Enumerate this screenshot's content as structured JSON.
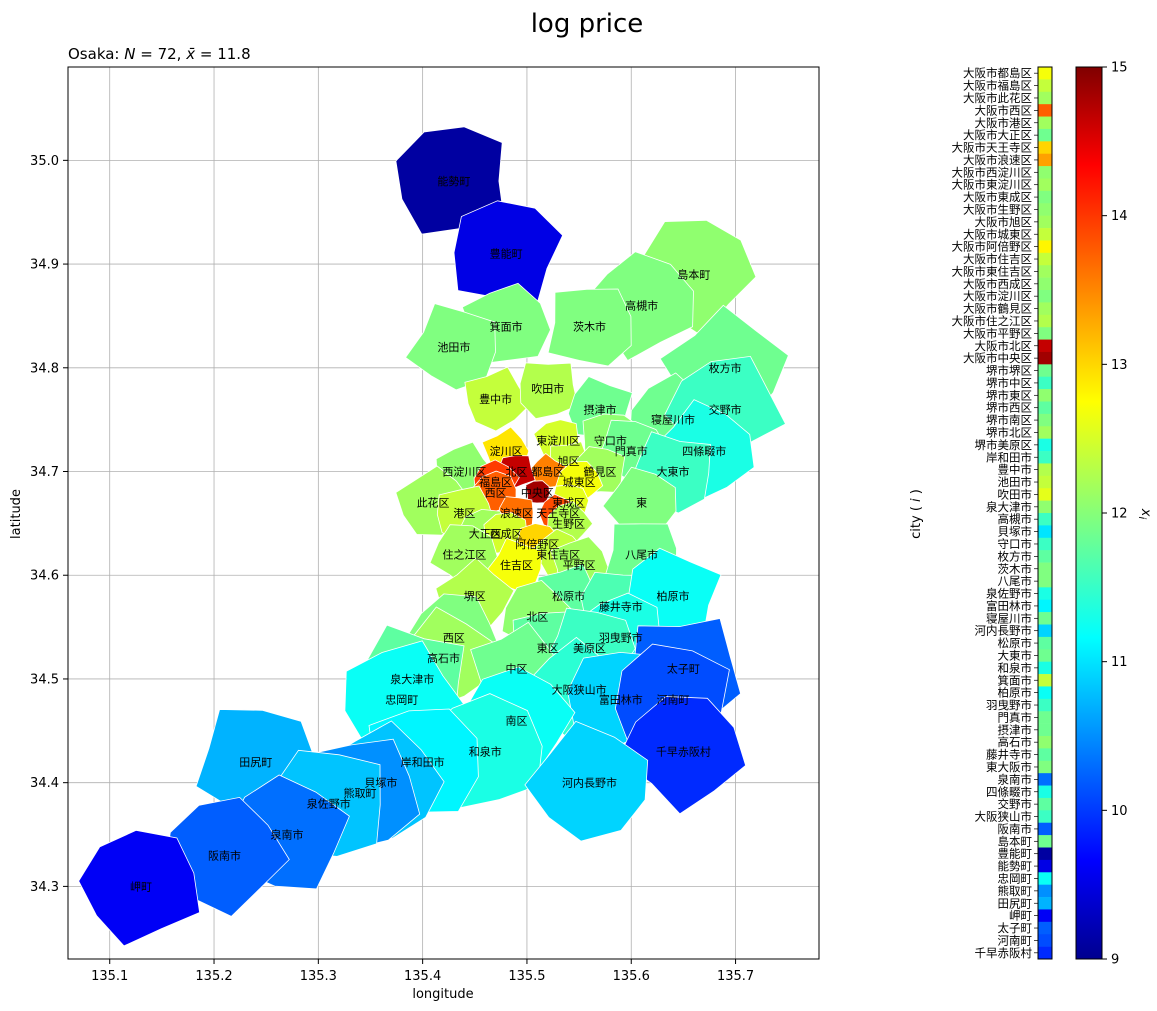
{
  "figure": {
    "title": "log price",
    "subtitle": "Osaka: $N = 72, \\bar{x} = 11.8$"
  },
  "chart_data": [
    {
      "type": "map",
      "title": "Osaka: $N = 72, \\bar{x} = 11.8$",
      "xlabel": "longitude",
      "ylabel": "latitude",
      "xlim": [
        135.06,
        135.78
      ],
      "ylim": [
        34.23,
        35.09
      ],
      "xticks": [
        "135.1",
        "135.2",
        "135.3",
        "135.4",
        "135.5",
        "135.6",
        "135.7"
      ],
      "yticks": [
        "34.3",
        "34.4",
        "34.5",
        "34.6",
        "34.7",
        "34.8",
        "34.9",
        "35.0"
      ],
      "grid": true,
      "colormap": "jet",
      "clim": [
        9,
        15
      ],
      "regions": [
        {
          "name": "能勢町",
          "lon": 135.43,
          "lat": 34.98,
          "value": 9.2
        },
        {
          "name": "豊能町",
          "lon": 135.48,
          "lat": 34.91,
          "value": 9.6
        },
        {
          "name": "島本町",
          "lon": 135.66,
          "lat": 34.89,
          "value": 12.1
        },
        {
          "name": "高槻市",
          "lon": 135.61,
          "lat": 34.86,
          "value": 12.0
        },
        {
          "name": "箕面市",
          "lon": 135.48,
          "lat": 34.84,
          "value": 12.0
        },
        {
          "name": "茨木市",
          "lon": 135.56,
          "lat": 34.84,
          "value": 12.0
        },
        {
          "name": "池田市",
          "lon": 135.43,
          "lat": 34.82,
          "value": 12.0
        },
        {
          "name": "枚方市",
          "lon": 135.69,
          "lat": 34.8,
          "value": 11.9
        },
        {
          "name": "豊中市",
          "lon": 135.47,
          "lat": 34.77,
          "value": 12.4
        },
        {
          "name": "吹田市",
          "lon": 135.52,
          "lat": 34.78,
          "value": 12.3
        },
        {
          "name": "摂津市",
          "lon": 135.57,
          "lat": 34.76,
          "value": 11.9
        },
        {
          "name": "寝屋川市",
          "lon": 135.64,
          "lat": 34.75,
          "value": 11.9
        },
        {
          "name": "交野市",
          "lon": 135.69,
          "lat": 34.76,
          "value": 11.6
        },
        {
          "name": "東淀川区",
          "lon": 135.53,
          "lat": 34.73,
          "value": 12.5
        },
        {
          "name": "守口市",
          "lon": 135.58,
          "lat": 34.73,
          "value": 12.1
        },
        {
          "name": "門真市",
          "lon": 135.6,
          "lat": 34.72,
          "value": 11.9
        },
        {
          "name": "四條畷市",
          "lon": 135.67,
          "lat": 34.72,
          "value": 11.4
        },
        {
          "name": "淀川区",
          "lon": 135.48,
          "lat": 34.72,
          "value": 12.9
        },
        {
          "name": "旭区",
          "lon": 135.54,
          "lat": 34.71,
          "value": 12.4
        },
        {
          "name": "大東市",
          "lon": 135.64,
          "lat": 34.7,
          "value": 11.6
        },
        {
          "name": "都島区",
          "lon": 135.52,
          "lat": 34.7,
          "value": 13.5
        },
        {
          "name": "西淀川区",
          "lon": 135.44,
          "lat": 34.7,
          "value": 12.1
        },
        {
          "name": "北区",
          "lon": 135.49,
          "lat": 34.7,
          "value": 14.6
        },
        {
          "name": "鶴見区",
          "lon": 135.57,
          "lat": 34.7,
          "value": 12.2
        },
        {
          "name": "福島区",
          "lon": 135.47,
          "lat": 34.69,
          "value": 13.9
        },
        {
          "name": "城東区",
          "lon": 135.55,
          "lat": 34.69,
          "value": 12.7
        },
        {
          "name": "西区",
          "lon": 135.47,
          "lat": 34.68,
          "value": 13.7
        },
        {
          "name": "中央区",
          "lon": 135.51,
          "lat": 34.68,
          "value": 14.8
        },
        {
          "name": "東成区",
          "lon": 135.54,
          "lat": 34.67,
          "value": 12.6
        },
        {
          "name": "東",
          "lon": 135.61,
          "lat": 34.67,
          "value": 12.0
        },
        {
          "name": "此花区",
          "lon": 135.41,
          "lat": 34.67,
          "value": 12.2
        },
        {
          "name": "港区",
          "lon": 135.44,
          "lat": 34.66,
          "value": 12.4
        },
        {
          "name": "浪速区",
          "lon": 135.49,
          "lat": 34.66,
          "value": 13.6
        },
        {
          "name": "天王寺区",
          "lon": 135.53,
          "lat": 34.66,
          "value": 13.8
        },
        {
          "name": "生野区",
          "lon": 135.54,
          "lat": 34.65,
          "value": 12.3
        },
        {
          "name": "大正区",
          "lon": 135.46,
          "lat": 34.64,
          "value": 12.2
        },
        {
          "name": "西成区",
          "lon": 135.48,
          "lat": 34.64,
          "value": 12.5
        },
        {
          "name": "阿倍野区",
          "lon": 135.51,
          "lat": 34.63,
          "value": 13.0
        },
        {
          "name": "住之江区",
          "lon": 135.44,
          "lat": 34.62,
          "value": 12.2
        },
        {
          "name": "東住吉区",
          "lon": 135.53,
          "lat": 34.62,
          "value": 12.4
        },
        {
          "name": "平野区",
          "lon": 135.55,
          "lat": 34.61,
          "value": 12.2
        },
        {
          "name": "八尾市",
          "lon": 135.61,
          "lat": 34.62,
          "value": 11.9
        },
        {
          "name": "住吉区",
          "lon": 135.49,
          "lat": 34.61,
          "value": 12.7
        },
        {
          "name": "堺区",
          "lon": 135.45,
          "lat": 34.58,
          "value": 12.3
        },
        {
          "name": "松原市",
          "lon": 135.54,
          "lat": 34.58,
          "value": 11.8
        },
        {
          "name": "藤井寺市",
          "lon": 135.59,
          "lat": 34.57,
          "value": 11.7
        },
        {
          "name": "柏原市",
          "lon": 135.64,
          "lat": 34.58,
          "value": 11.3
        },
        {
          "name": "北区",
          "lon": 135.51,
          "lat": 34.56,
          "value": 12.1
        },
        {
          "name": "西区",
          "lon": 135.43,
          "lat": 34.54,
          "value": 12.0
        },
        {
          "name": "羽曳野市",
          "lon": 135.59,
          "lat": 34.54,
          "value": 11.4
        },
        {
          "name": "東区",
          "lon": 135.52,
          "lat": 34.53,
          "value": 11.8
        },
        {
          "name": "美原区",
          "lon": 135.56,
          "lat": 34.53,
          "value": 11.6
        },
        {
          "name": "高石市",
          "lon": 135.42,
          "lat": 34.52,
          "value": 12.2
        },
        {
          "name": "中区",
          "lon": 135.49,
          "lat": 34.51,
          "value": 11.9
        },
        {
          "name": "太子町",
          "lon": 135.65,
          "lat": 34.51,
          "value": 10.3
        },
        {
          "name": "泉大津市",
          "lon": 135.39,
          "lat": 34.5,
          "value": 11.8
        },
        {
          "name": "大阪狭山市",
          "lon": 135.55,
          "lat": 34.49,
          "value": 11.5
        },
        {
          "name": "忠岡町",
          "lon": 135.38,
          "lat": 34.48,
          "value": 11.3
        },
        {
          "name": "富田林市",
          "lon": 135.59,
          "lat": 34.48,
          "value": 11.0
        },
        {
          "name": "河南町",
          "lon": 135.64,
          "lat": 34.48,
          "value": 10.2
        },
        {
          "name": "南区",
          "lon": 135.49,
          "lat": 34.46,
          "value": 11.3
        },
        {
          "name": "千早赤阪村",
          "lon": 135.65,
          "lat": 34.43,
          "value": 10.0
        },
        {
          "name": "和泉市",
          "lon": 135.46,
          "lat": 34.43,
          "value": 11.4
        },
        {
          "name": "岸和田市",
          "lon": 135.4,
          "lat": 34.42,
          "value": 11.2
        },
        {
          "name": "田尻町",
          "lon": 135.24,
          "lat": 34.42,
          "value": 10.8
        },
        {
          "name": "河内長野市",
          "lon": 135.56,
          "lat": 34.4,
          "value": 11.0
        },
        {
          "name": "貝塚市",
          "lon": 135.36,
          "lat": 34.4,
          "value": 10.9
        },
        {
          "name": "熊取町",
          "lon": 135.34,
          "lat": 34.39,
          "value": 10.6
        },
        {
          "name": "泉佐野市",
          "lon": 135.31,
          "lat": 34.38,
          "value": 10.9
        },
        {
          "name": "泉南市",
          "lon": 135.27,
          "lat": 34.35,
          "value": 10.4
        },
        {
          "name": "阪南市",
          "lon": 135.21,
          "lat": 34.33,
          "value": 10.3
        },
        {
          "name": "岬町",
          "lon": 135.13,
          "lat": 34.3,
          "value": 9.7
        }
      ]
    },
    {
      "type": "heatmap",
      "ylabel": "city ( $i$ )",
      "categories": [
        "大阪市都島区",
        "大阪市福島区",
        "大阪市此花区",
        "大阪市西区",
        "大阪市港区",
        "大阪市大正区",
        "大阪市天王寺区",
        "大阪市浪速区",
        "大阪市西淀川区",
        "大阪市東淀川区",
        "大阪市東成区",
        "大阪市生野区",
        "大阪市旭区",
        "大阪市城東区",
        "大阪市阿倍野区",
        "大阪市住吉区",
        "大阪市東住吉区",
        "大阪市西成区",
        "大阪市淀川区",
        "大阪市鶴見区",
        "大阪市住之江区",
        "大阪市平野区",
        "大阪市北区",
        "大阪市中央区",
        "堺市堺区",
        "堺市中区",
        "堺市東区",
        "堺市西区",
        "堺市南区",
        "堺市北区",
        "堺市美原区",
        "岸和田市",
        "豊中市",
        "池田市",
        "吹田市",
        "泉大津市",
        "高槻市",
        "貝塚市",
        "守口市",
        "枚方市",
        "茨木市",
        "八尾市",
        "泉佐野市",
        "富田林市",
        "寝屋川市",
        "河内長野市",
        "松原市",
        "大東市",
        "和泉市",
        "箕面市",
        "柏原市",
        "羽曳野市",
        "門真市",
        "摂津市",
        "高石市",
        "藤井寺市",
        "東大阪市",
        "泉南市",
        "四條畷市",
        "交野市",
        "大阪狭山市",
        "阪南市",
        "島本町",
        "豊能町",
        "能勢町",
        "忠岡町",
        "熊取町",
        "田尻町",
        "岬町",
        "太子町",
        "河南町",
        "千早赤阪村"
      ],
      "values": [
        12.7,
        12.4,
        12.2,
        13.7,
        12.2,
        11.9,
        13.0,
        13.3,
        12.1,
        12.2,
        12.0,
        12.1,
        12.2,
        12.4,
        12.8,
        12.4,
        12.2,
        12.1,
        12.0,
        12.2,
        12.3,
        12.0,
        14.6,
        14.8,
        11.9,
        11.6,
        12.1,
        11.8,
        12.0,
        12.2,
        11.4,
        11.6,
        12.3,
        12.4,
        12.6,
        12.1,
        11.6,
        11.1,
        11.6,
        11.8,
        12.0,
        12.0,
        11.4,
        11.2,
        11.9,
        11.0,
        11.8,
        11.9,
        11.4,
        12.4,
        11.3,
        11.6,
        11.9,
        11.9,
        12.1,
        11.8,
        12.0,
        10.4,
        11.4,
        11.8,
        11.6,
        10.3,
        11.9,
        9.2,
        9.6,
        11.3,
        10.6,
        10.8,
        9.7,
        10.3,
        10.2,
        10.0
      ]
    },
    {
      "type": "colorbar",
      "label": "$x_i$",
      "colormap": "jet",
      "range": [
        9,
        15
      ],
      "ticks": [
        "9",
        "10",
        "11",
        "12",
        "13",
        "14",
        "15"
      ]
    }
  ]
}
